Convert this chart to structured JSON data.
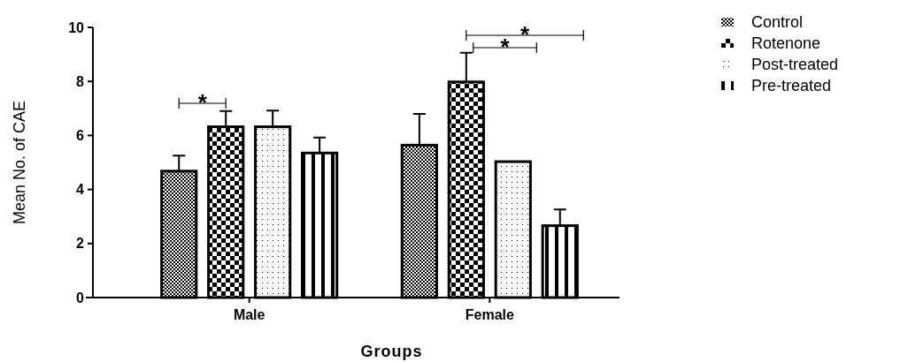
{
  "chart_data": {
    "type": "bar",
    "xlabel": "Groups",
    "ylabel": "Mean No. of CAE",
    "categories": [
      "Male",
      "Female"
    ],
    "ylim": [
      0,
      10
    ],
    "yticks": [
      0,
      2,
      4,
      6,
      8,
      10
    ],
    "legend": "right",
    "grid": false,
    "series": [
      {
        "name": "Control",
        "color": "#000000",
        "values": [
          4.68,
          5.64
        ],
        "errors": [
          0.57,
          1.16
        ]
      },
      {
        "name": "Rotenone",
        "color": "#000000",
        "values": [
          6.32,
          7.98
        ],
        "errors": [
          0.58,
          1.08
        ]
      },
      {
        "name": "Post-treated",
        "color": "#000000",
        "values": [
          6.32,
          5.03
        ],
        "errors": [
          0.6,
          null
        ]
      },
      {
        "name": "Pre-treated",
        "color": "#000000",
        "values": [
          5.35,
          2.66
        ],
        "errors": [
          0.57,
          0.6
        ]
      }
    ],
    "annotations": [
      "*",
      "*",
      "*"
    ]
  }
}
